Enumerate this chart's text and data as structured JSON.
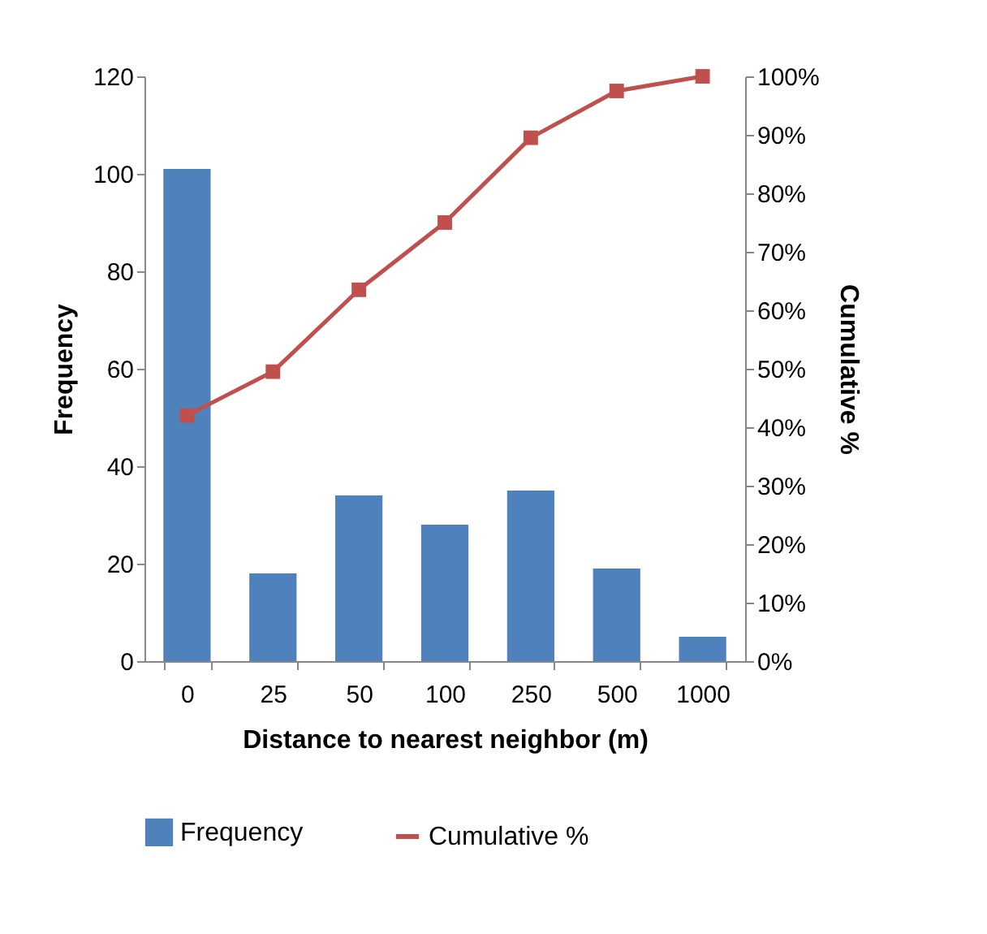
{
  "chart_data": {
    "type": "bar",
    "xlabel": "Distance to nearest neighbor (m)",
    "ylabel": "Frequency",
    "y2label": "Cumulative %",
    "categories": [
      "0",
      "25",
      "50",
      "100",
      "250",
      "500",
      "1000"
    ],
    "series": [
      {
        "name": "Frequency",
        "color": "#4f81bd",
        "values": [
          101,
          18,
          34,
          28,
          35,
          19,
          5
        ]
      },
      {
        "name": "Cumulative %",
        "type": "line",
        "axis": "y2",
        "color": "#c0504d",
        "marker": "square",
        "values": [
          42,
          49.5,
          63.5,
          75,
          89.5,
          97.5,
          100
        ]
      }
    ],
    "ylim": [
      0,
      120
    ],
    "yticks": [
      0,
      20,
      40,
      60,
      80,
      100,
      120
    ],
    "y2lim": [
      0,
      100
    ],
    "y2ticks": [
      {
        "value": 0,
        "label": "0%"
      },
      {
        "value": 10,
        "label": "10%"
      },
      {
        "value": 20,
        "label": "20%"
      },
      {
        "value": 30,
        "label": "30%"
      },
      {
        "value": 40,
        "label": "40%"
      },
      {
        "value": 50,
        "label": "50%"
      },
      {
        "value": 60,
        "label": "60%"
      },
      {
        "value": 70,
        "label": "70%"
      },
      {
        "value": 80,
        "label": "80%"
      },
      {
        "value": 90,
        "label": "90%"
      },
      {
        "value": 100,
        "label": "100%"
      }
    ],
    "legend": "bottom"
  }
}
